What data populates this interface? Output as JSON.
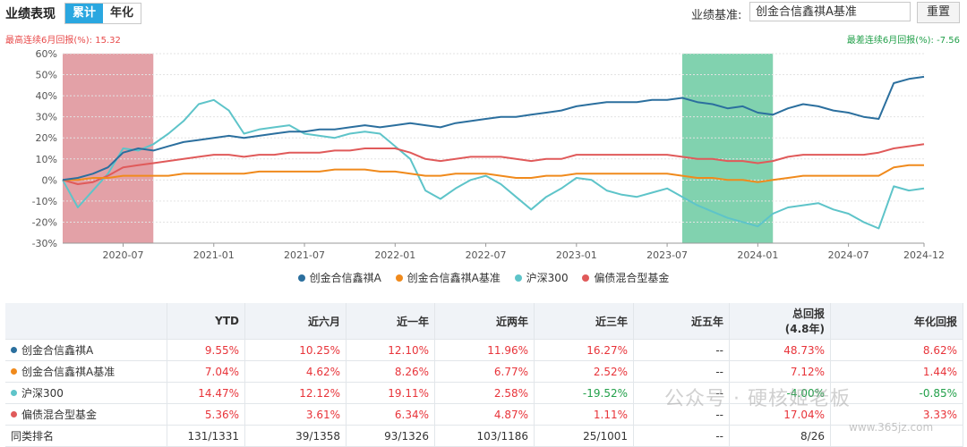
{
  "header": {
    "title": "业绩表现",
    "tab_cumulative": "累计",
    "tab_annualized": "年化",
    "benchmark_label": "业绩基准:",
    "benchmark_value": "创金合信鑫祺A基准",
    "reset_label": "重置"
  },
  "drawdown": {
    "max_label": "最高连续6月回报(%):",
    "max_value": "15.32",
    "min_label": "最差连续6月回报(%):",
    "min_value": "-7.56"
  },
  "colors": {
    "fund": "#2b6f9e",
    "benchmark": "#f08a1c",
    "hs300": "#5ec4c9",
    "category": "#e05a5a",
    "best_band": "#d9818a",
    "worst_band": "#4cbf8d"
  },
  "chart_data": {
    "type": "line",
    "xlim": [
      "2020-03",
      "2024-12"
    ],
    "ylim": [
      -30,
      60
    ],
    "yticks": [
      "60%",
      "50%",
      "40%",
      "30%",
      "20%",
      "10%",
      "0%",
      "-10%",
      "-20%",
      "-30%"
    ],
    "xticks": [
      "2020-07",
      "2021-01",
      "2021-07",
      "2022-01",
      "2022-07",
      "2023-01",
      "2023-07",
      "2024-01",
      "2024-07",
      "2024-12"
    ],
    "grid": true,
    "legend_position": "bottom",
    "highlight_bands": [
      {
        "from": "2020-03",
        "to": "2020-09",
        "kind": "best"
      },
      {
        "from": "2023-08",
        "to": "2024-02",
        "kind": "worst"
      }
    ],
    "x": [
      "2020-03",
      "2020-04",
      "2020-05",
      "2020-06",
      "2020-07",
      "2020-08",
      "2020-09",
      "2020-10",
      "2020-11",
      "2020-12",
      "2021-01",
      "2021-02",
      "2021-03",
      "2021-04",
      "2021-05",
      "2021-06",
      "2021-07",
      "2021-08",
      "2021-09",
      "2021-10",
      "2021-11",
      "2021-12",
      "2022-01",
      "2022-02",
      "2022-03",
      "2022-04",
      "2022-05",
      "2022-06",
      "2022-07",
      "2022-08",
      "2022-09",
      "2022-10",
      "2022-11",
      "2022-12",
      "2023-01",
      "2023-02",
      "2023-03",
      "2023-04",
      "2023-05",
      "2023-06",
      "2023-07",
      "2023-08",
      "2023-09",
      "2023-10",
      "2023-11",
      "2023-12",
      "2024-01",
      "2024-02",
      "2024-03",
      "2024-04",
      "2024-05",
      "2024-06",
      "2024-07",
      "2024-08",
      "2024-09",
      "2024-10",
      "2024-11",
      "2024-12"
    ],
    "series": [
      {
        "name": "创金合信鑫祺A",
        "values": [
          0,
          1,
          3,
          6,
          13,
          15,
          14,
          16,
          18,
          19,
          20,
          21,
          20,
          21,
          22,
          23,
          23,
          24,
          24,
          25,
          26,
          25,
          26,
          27,
          26,
          25,
          27,
          28,
          29,
          30,
          30,
          31,
          32,
          33,
          35,
          36,
          37,
          37,
          37,
          38,
          38,
          39,
          37,
          36,
          34,
          35,
          32,
          31,
          34,
          36,
          35,
          33,
          32,
          30,
          29,
          46,
          48,
          49
        ]
      },
      {
        "name": "创金合信鑫祺A基准",
        "values": [
          0,
          0,
          1,
          1,
          2,
          2,
          2,
          2,
          3,
          3,
          3,
          3,
          3,
          4,
          4,
          4,
          4,
          4,
          5,
          5,
          5,
          4,
          4,
          3,
          2,
          2,
          3,
          3,
          3,
          2,
          1,
          1,
          2,
          2,
          3,
          3,
          3,
          3,
          3,
          3,
          3,
          2,
          1,
          1,
          0,
          0,
          -1,
          0,
          1,
          2,
          2,
          2,
          2,
          2,
          2,
          6,
          7,
          7
        ]
      },
      {
        "name": "沪深300",
        "values": [
          0,
          -13,
          -5,
          3,
          15,
          14,
          17,
          22,
          28,
          36,
          38,
          33,
          22,
          24,
          25,
          26,
          22,
          21,
          20,
          22,
          23,
          22,
          16,
          10,
          -5,
          -9,
          -4,
          0,
          2,
          -2,
          -8,
          -14,
          -8,
          -4,
          1,
          0,
          -5,
          -7,
          -8,
          -6,
          -4,
          -8,
          -12,
          -15,
          -18,
          -20,
          -22,
          -16,
          -13,
          -12,
          -11,
          -14,
          -16,
          -20,
          -23,
          -3,
          -5,
          -4
        ]
      },
      {
        "name": "偏债混合型基金",
        "values": [
          0,
          -2,
          -1,
          2,
          6,
          7,
          8,
          9,
          10,
          11,
          12,
          12,
          11,
          12,
          12,
          13,
          13,
          13,
          14,
          14,
          15,
          15,
          15,
          13,
          10,
          9,
          10,
          11,
          11,
          11,
          10,
          9,
          10,
          10,
          12,
          12,
          12,
          12,
          12,
          12,
          12,
          11,
          10,
          10,
          9,
          9,
          8,
          9,
          11,
          12,
          12,
          12,
          12,
          12,
          13,
          15,
          16,
          17
        ]
      }
    ]
  },
  "table": {
    "columns": [
      "",
      "YTD",
      "近六月",
      "近一年",
      "近两年",
      "近三年",
      "近五年",
      "总回报",
      "年化回报"
    ],
    "total_sub": "(4.8年)",
    "rows": [
      {
        "name": "创金合信鑫祺A",
        "cells": [
          "9.55%",
          "10.25%",
          "12.10%",
          "11.96%",
          "16.27%",
          "--",
          "48.73%",
          "8.62%"
        ]
      },
      {
        "name": "创金合信鑫祺A基准",
        "cells": [
          "7.04%",
          "4.62%",
          "8.26%",
          "6.77%",
          "2.52%",
          "--",
          "7.12%",
          "1.44%"
        ]
      },
      {
        "name": "沪深300",
        "cells": [
          "14.47%",
          "12.12%",
          "19.11%",
          "2.58%",
          "-19.52%",
          "--",
          "-4.00%",
          "-0.85%"
        ]
      },
      {
        "name": "偏债混合型基金",
        "cells": [
          "5.36%",
          "3.61%",
          "6.34%",
          "4.87%",
          "1.11%",
          "--",
          "17.04%",
          "3.33%"
        ]
      },
      {
        "name": "同类排名",
        "cells": [
          "131/1331",
          "39/1358",
          "93/1326",
          "103/1186",
          "25/1001",
          "--",
          "8/26",
          ""
        ]
      }
    ]
  },
  "watermark": {
    "text": "公众号 · 硬核姬老板",
    "site": "www.365jz.com"
  }
}
